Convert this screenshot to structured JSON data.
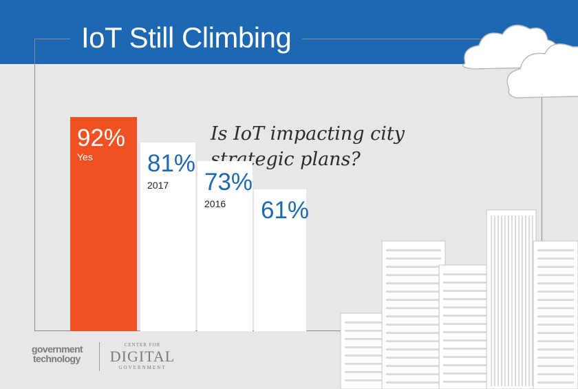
{
  "title": "IoT Still Climbing",
  "question": "Is IoT impacting city strategic plans?",
  "branding": {
    "gt_line1": "government",
    "gt_line2": "technology",
    "cdg_line1": "CENTER FOR",
    "cdg_line2": "DIGITAL",
    "cdg_line3": "GOVERNMENT"
  },
  "colors": {
    "header_band": "#1e67b2",
    "highlight_bar": "#f05123",
    "bar": "#ffffff",
    "value_text": "#1e67b2",
    "background": "#e6e7e8"
  },
  "chart_data": {
    "type": "bar",
    "title": "IoT Still Climbing",
    "question": "Is IoT impacting city strategic plans?",
    "categories": [
      "Yes",
      "2017",
      "2016",
      ""
    ],
    "values": [
      92,
      81,
      73,
      61
    ],
    "value_labels": [
      "92%",
      "81%",
      "73%",
      "61%"
    ],
    "unit": "%",
    "highlight_index": 0,
    "grid": false
  }
}
